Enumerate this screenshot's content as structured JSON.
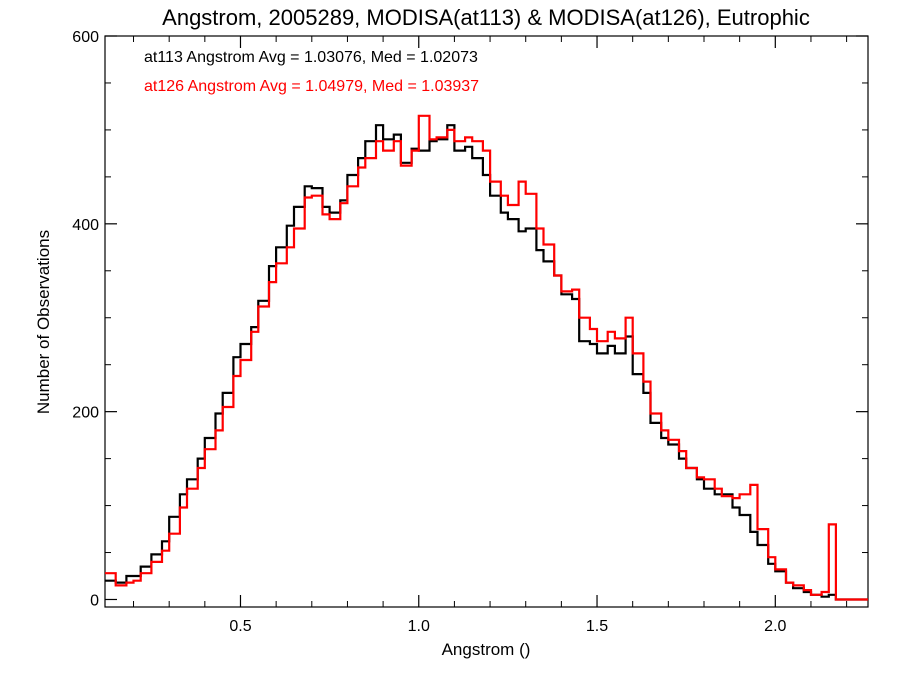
{
  "chart_data": {
    "type": "line",
    "title": "Angstrom, 2005289, MODISA(at113) & MODISA(at126), Eutrophic",
    "xlabel": "Angstrom ()",
    "ylabel": "Number of Observations",
    "xlim": [
      0.12,
      2.26
    ],
    "ylim": [
      -8,
      600
    ],
    "xticks": [
      0.5,
      1.0,
      1.5,
      2.0
    ],
    "xtick_labels": [
      "0.5",
      "1.0",
      "1.5",
      "2.0"
    ],
    "yticks": [
      0,
      200,
      400,
      600
    ],
    "ytick_labels": [
      "0",
      "200",
      "400",
      "600"
    ],
    "grid": false,
    "step": "histogram",
    "annotations": [
      {
        "text": "at113 Angstrom Avg = 1.03076, Med = 1.02073",
        "color": "#000000"
      },
      {
        "text": "at126 Angstrom Avg = 1.04979, Med = 1.03937",
        "color": "#ff0000"
      }
    ],
    "series": [
      {
        "color": "#000000",
        "points": [
          [
            0.12,
            20
          ],
          [
            0.15,
            18
          ],
          [
            0.18,
            25
          ],
          [
            0.2,
            25
          ],
          [
            0.22,
            35
          ],
          [
            0.25,
            48
          ],
          [
            0.28,
            62
          ],
          [
            0.3,
            88
          ],
          [
            0.33,
            112
          ],
          [
            0.35,
            128
          ],
          [
            0.38,
            150
          ],
          [
            0.4,
            172
          ],
          [
            0.43,
            198
          ],
          [
            0.45,
            220
          ],
          [
            0.48,
            258
          ],
          [
            0.5,
            272
          ],
          [
            0.53,
            290
          ],
          [
            0.55,
            318
          ],
          [
            0.58,
            355
          ],
          [
            0.6,
            375
          ],
          [
            0.63,
            398
          ],
          [
            0.65,
            418
          ],
          [
            0.68,
            440
          ],
          [
            0.7,
            438
          ],
          [
            0.73,
            418
          ],
          [
            0.75,
            412
          ],
          [
            0.78,
            425
          ],
          [
            0.8,
            452
          ],
          [
            0.83,
            470
          ],
          [
            0.85,
            488
          ],
          [
            0.88,
            505
          ],
          [
            0.9,
            490
          ],
          [
            0.93,
            495
          ],
          [
            0.95,
            465
          ],
          [
            0.98,
            480
          ],
          [
            1.0,
            478
          ],
          [
            1.03,
            488
          ],
          [
            1.05,
            490
          ],
          [
            1.08,
            505
          ],
          [
            1.1,
            478
          ],
          [
            1.13,
            482
          ],
          [
            1.15,
            470
          ],
          [
            1.18,
            452
          ],
          [
            1.2,
            430
          ],
          [
            1.23,
            412
          ],
          [
            1.25,
            405
          ],
          [
            1.28,
            392
          ],
          [
            1.3,
            395
          ],
          [
            1.33,
            372
          ],
          [
            1.35,
            360
          ],
          [
            1.38,
            345
          ],
          [
            1.4,
            325
          ],
          [
            1.43,
            320
          ],
          [
            1.45,
            275
          ],
          [
            1.48,
            272
          ],
          [
            1.5,
            262
          ],
          [
            1.53,
            270
          ],
          [
            1.55,
            262
          ],
          [
            1.58,
            280
          ],
          [
            1.6,
            240
          ],
          [
            1.63,
            220
          ],
          [
            1.65,
            188
          ],
          [
            1.68,
            172
          ],
          [
            1.7,
            165
          ],
          [
            1.73,
            150
          ],
          [
            1.75,
            140
          ],
          [
            1.78,
            128
          ],
          [
            1.8,
            118
          ],
          [
            1.83,
            112
          ],
          [
            1.85,
            112
          ],
          [
            1.88,
            98
          ],
          [
            1.9,
            90
          ],
          [
            1.93,
            72
          ],
          [
            1.95,
            58
          ],
          [
            1.98,
            38
          ],
          [
            2.0,
            30
          ],
          [
            2.03,
            18
          ],
          [
            2.05,
            12
          ],
          [
            2.08,
            8
          ],
          [
            2.1,
            5
          ],
          [
            2.13,
            3
          ],
          [
            2.15,
            5
          ],
          [
            2.17,
            0
          ],
          [
            2.26,
            0
          ]
        ]
      },
      {
        "color": "#ff0000",
        "points": [
          [
            0.12,
            28
          ],
          [
            0.15,
            15
          ],
          [
            0.18,
            18
          ],
          [
            0.2,
            20
          ],
          [
            0.22,
            28
          ],
          [
            0.25,
            40
          ],
          [
            0.28,
            52
          ],
          [
            0.3,
            70
          ],
          [
            0.33,
            98
          ],
          [
            0.35,
            118
          ],
          [
            0.38,
            140
          ],
          [
            0.4,
            160
          ],
          [
            0.43,
            180
          ],
          [
            0.45,
            205
          ],
          [
            0.48,
            238
          ],
          [
            0.5,
            255
          ],
          [
            0.53,
            285
          ],
          [
            0.55,
            312
          ],
          [
            0.58,
            338
          ],
          [
            0.6,
            358
          ],
          [
            0.63,
            375
          ],
          [
            0.65,
            395
          ],
          [
            0.68,
            428
          ],
          [
            0.7,
            430
          ],
          [
            0.73,
            410
          ],
          [
            0.75,
            405
          ],
          [
            0.78,
            422
          ],
          [
            0.8,
            440
          ],
          [
            0.83,
            460
          ],
          [
            0.85,
            470
          ],
          [
            0.88,
            488
          ],
          [
            0.9,
            478
          ],
          [
            0.93,
            488
          ],
          [
            0.95,
            462
          ],
          [
            0.98,
            478
          ],
          [
            1.0,
            515
          ],
          [
            1.03,
            490
          ],
          [
            1.05,
            492
          ],
          [
            1.08,
            500
          ],
          [
            1.1,
            488
          ],
          [
            1.13,
            492
          ],
          [
            1.15,
            488
          ],
          [
            1.18,
            478
          ],
          [
            1.2,
            445
          ],
          [
            1.23,
            430
          ],
          [
            1.25,
            420
          ],
          [
            1.28,
            445
          ],
          [
            1.3,
            432
          ],
          [
            1.33,
            395
          ],
          [
            1.35,
            378
          ],
          [
            1.38,
            345
          ],
          [
            1.4,
            328
          ],
          [
            1.43,
            330
          ],
          [
            1.45,
            300
          ],
          [
            1.48,
            288
          ],
          [
            1.5,
            275
          ],
          [
            1.53,
            285
          ],
          [
            1.55,
            278
          ],
          [
            1.58,
            300
          ],
          [
            1.6,
            262
          ],
          [
            1.63,
            232
          ],
          [
            1.65,
            198
          ],
          [
            1.68,
            180
          ],
          [
            1.7,
            170
          ],
          [
            1.73,
            158
          ],
          [
            1.75,
            140
          ],
          [
            1.78,
            130
          ],
          [
            1.8,
            128
          ],
          [
            1.83,
            118
          ],
          [
            1.85,
            110
          ],
          [
            1.88,
            108
          ],
          [
            1.9,
            112
          ],
          [
            1.93,
            122
          ],
          [
            1.95,
            75
          ],
          [
            1.98,
            45
          ],
          [
            2.0,
            32
          ],
          [
            2.03,
            18
          ],
          [
            2.05,
            15
          ],
          [
            2.08,
            10
          ],
          [
            2.1,
            5
          ],
          [
            2.13,
            8
          ],
          [
            2.15,
            80
          ],
          [
            2.17,
            0
          ],
          [
            2.26,
            0
          ]
        ]
      }
    ]
  }
}
